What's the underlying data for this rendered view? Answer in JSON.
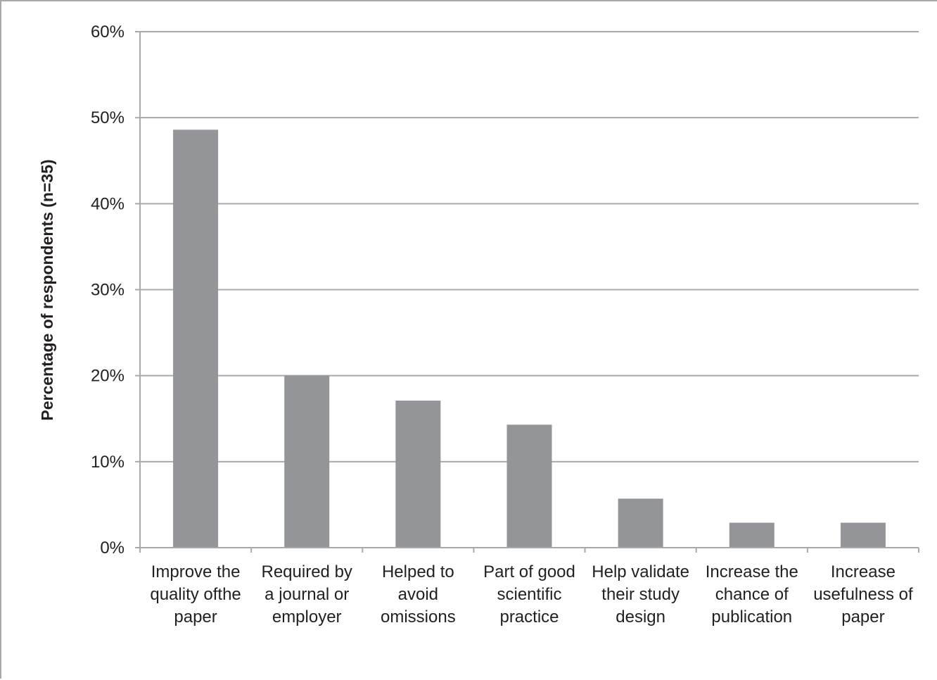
{
  "chart_data": {
    "type": "bar",
    "title": "",
    "xlabel": "",
    "ylabel": "Percentage of respondents (n=35)",
    "ylim": [
      0,
      60
    ],
    "yticks": [
      "0%",
      "10%",
      "20%",
      "30%",
      "40%",
      "50%",
      "60%"
    ],
    "grid": true,
    "legend": "none",
    "categories": [
      [
        "Improve the",
        "quality ofthe",
        "paper"
      ],
      [
        "Required by",
        "a journal or",
        "employer"
      ],
      [
        "Helped to",
        "avoid",
        "omissions"
      ],
      [
        "Part of good",
        "scientific",
        "practice"
      ],
      [
        "Help validate",
        "their study",
        "design"
      ],
      [
        "Increase the",
        "chance of",
        "publication"
      ],
      [
        "Increase",
        "usefulness of",
        "paper"
      ]
    ],
    "values": [
      48.6,
      20.0,
      17.1,
      14.3,
      5.7,
      2.9,
      2.9
    ],
    "colors": {
      "bar": "#939598",
      "grid": "#a7a9ac",
      "axis": "#a7a9ac",
      "text": "#231f20"
    }
  }
}
